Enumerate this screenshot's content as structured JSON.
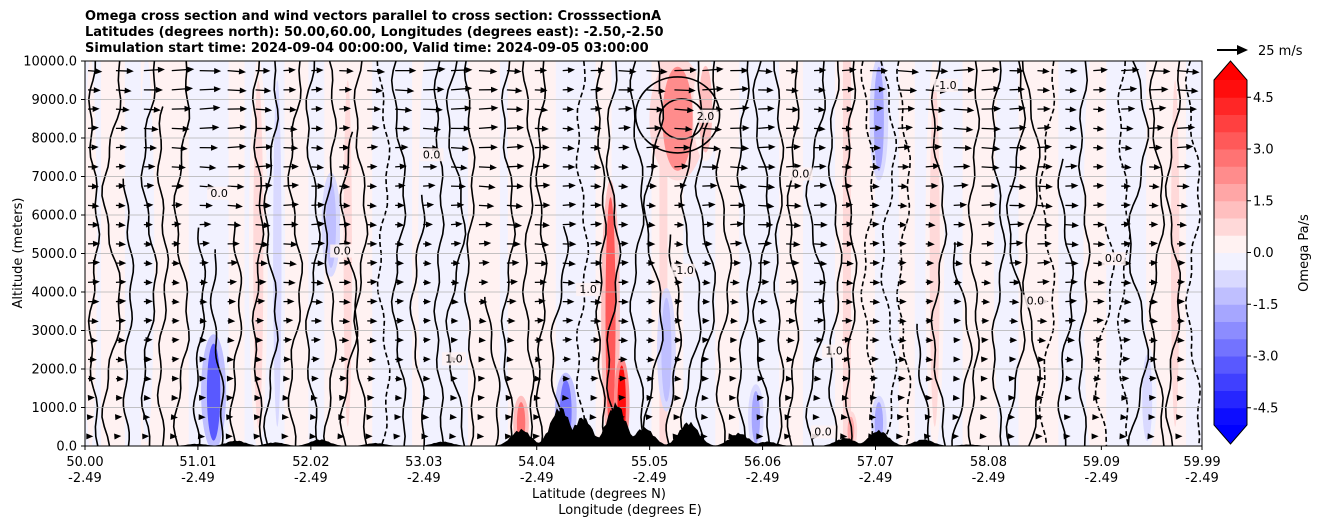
{
  "chart_data": {
    "type": "heatmap",
    "title_lines": [
      "Omega cross section and wind vectors parallel to cross section: CrosssectionA",
      "Latitudes (degrees north): 50.00,60.00, Longitudes (degrees east): -2.50,-2.50",
      "Simulation start time: 2024-09-04 00:00:00, Valid time: 2024-09-05 03:00:00"
    ],
    "xlabel_line1": "Latitude (degrees N)",
    "xlabel_line2": "Longitude (degrees E)",
    "ylabel": "Altitude (meters)",
    "x_ticks": [
      {
        "lat": "50.00",
        "lon": "-2.49"
      },
      {
        "lat": "51.01",
        "lon": "-2.49"
      },
      {
        "lat": "52.02",
        "lon": "-2.49"
      },
      {
        "lat": "53.03",
        "lon": "-2.49"
      },
      {
        "lat": "54.04",
        "lon": "-2.49"
      },
      {
        "lat": "55.05",
        "lon": "-2.49"
      },
      {
        "lat": "56.06",
        "lon": "-2.49"
      },
      {
        "lat": "57.07",
        "lon": "-2.49"
      },
      {
        "lat": "58.08",
        "lon": "-2.49"
      },
      {
        "lat": "59.09",
        "lon": "-2.49"
      },
      {
        "lat": "59.99",
        "lon": "-2.49"
      }
    ],
    "y_ticks": [
      "0.0",
      "1000.0",
      "2000.0",
      "3000.0",
      "4000.0",
      "5000.0",
      "6000.0",
      "7000.0",
      "8000.0",
      "9000.0",
      "10000.0"
    ],
    "xlim": [
      50.0,
      59.99
    ],
    "ylim": [
      0,
      10000
    ],
    "grid": "horizontal",
    "colorbar": {
      "label": "Omega Pa/s",
      "min": -5.0,
      "max": 5.0,
      "step": 0.5,
      "ticks": [
        "-4.5",
        "-3.0",
        "-1.5",
        "0.0",
        "1.5",
        "3.0",
        "4.5"
      ],
      "extend": "both",
      "colormap": "bwr"
    },
    "quiver_key": {
      "label": "25 m/s",
      "speed": 25
    },
    "features": [
      {
        "lat": 50.05,
        "alt_top": 10000,
        "alt_bottom": 0,
        "width": 0.04,
        "omega": 0.35
      },
      {
        "lat": 50.55,
        "alt_top": 10000,
        "alt_bottom": 200,
        "width": 0.05,
        "omega": -0.4
      },
      {
        "lat": 51.15,
        "alt_top": 2800,
        "alt_bottom": 0,
        "width": 0.08,
        "omega": -3.2
      },
      {
        "lat": 51.55,
        "alt_top": 10000,
        "alt_bottom": 0,
        "width": 0.06,
        "omega": 0.5
      },
      {
        "lat": 51.72,
        "alt_top": 10000,
        "alt_bottom": 0,
        "width": 0.05,
        "omega": -0.6
      },
      {
        "lat": 52.2,
        "alt_top": 7000,
        "alt_bottom": 4500,
        "width": 0.06,
        "omega": -1.4
      },
      {
        "lat": 52.35,
        "alt_top": 10000,
        "alt_bottom": 0,
        "width": 0.05,
        "omega": 0.6
      },
      {
        "lat": 53.05,
        "alt_top": 10000,
        "alt_bottom": 0,
        "width": 0.05,
        "omega": -0.5
      },
      {
        "lat": 53.9,
        "alt_top": 1200,
        "alt_bottom": 0,
        "width": 0.05,
        "omega": 2.5
      },
      {
        "lat": 54.3,
        "alt_top": 1800,
        "alt_bottom": 0,
        "width": 0.07,
        "omega": -2.6
      },
      {
        "lat": 54.7,
        "alt_top": 6800,
        "alt_bottom": 0,
        "width": 0.06,
        "omega": 3.2
      },
      {
        "lat": 54.8,
        "alt_top": 2200,
        "alt_bottom": 0,
        "width": 0.05,
        "omega": 5.0
      },
      {
        "lat": 55.2,
        "alt_top": 4000,
        "alt_bottom": 1000,
        "width": 0.06,
        "omega": -1.2
      },
      {
        "lat": 55.3,
        "alt_top": 10000,
        "alt_bottom": 7000,
        "width": 0.18,
        "omega": 2.2
      },
      {
        "lat": 55.55,
        "alt_top": 10000,
        "alt_bottom": 7500,
        "width": 0.08,
        "omega": 1.0
      },
      {
        "lat": 56.0,
        "alt_top": 1500,
        "alt_bottom": 0,
        "width": 0.05,
        "omega": -2.0
      },
      {
        "lat": 56.85,
        "alt_top": 800,
        "alt_bottom": 0,
        "width": 0.04,
        "omega": 1.6
      },
      {
        "lat": 57.1,
        "alt_top": 10000,
        "alt_bottom": 7000,
        "width": 0.06,
        "omega": -1.6
      },
      {
        "lat": 57.1,
        "alt_top": 1200,
        "alt_bottom": 0,
        "width": 0.05,
        "omega": -1.8
      },
      {
        "lat": 57.6,
        "alt_top": 10000,
        "alt_bottom": 0,
        "width": 0.06,
        "omega": 0.5
      },
      {
        "lat": 58.2,
        "alt_top": 10000,
        "alt_bottom": 0,
        "width": 0.05,
        "omega": -0.5
      },
      {
        "lat": 59.0,
        "alt_top": 10000,
        "alt_bottom": 0,
        "width": 0.05,
        "omega": 0.4
      },
      {
        "lat": 59.5,
        "alt_top": 2500,
        "alt_bottom": 0,
        "width": 0.06,
        "omega": -0.7
      },
      {
        "lat": 59.75,
        "alt_top": 10000,
        "alt_bottom": 0,
        "width": 0.05,
        "omega": 0.5
      }
    ],
    "contour_labels": [
      {
        "text": "0.0",
        "lat": 51.2,
        "alt": 6500
      },
      {
        "text": "0.0",
        "lat": 52.3,
        "alt": 5000
      },
      {
        "text": "0.0",
        "lat": 53.1,
        "alt": 7500
      },
      {
        "text": "1.0",
        "lat": 53.3,
        "alt": 2200
      },
      {
        "text": "-1.0",
        "lat": 55.35,
        "alt": 4500
      },
      {
        "text": "2.0",
        "lat": 55.55,
        "alt": 8500
      },
      {
        "text": "1.0",
        "lat": 54.5,
        "alt": 4000
      },
      {
        "text": "0.0",
        "lat": 56.4,
        "alt": 7000
      },
      {
        "text": "1.0",
        "lat": 56.7,
        "alt": 2400
      },
      {
        "text": "0.0",
        "lat": 58.5,
        "alt": 3700
      },
      {
        "text": "0.0",
        "lat": 59.2,
        "alt": 4800
      },
      {
        "text": "-1.0",
        "lat": 57.7,
        "alt": 9300
      },
      {
        "text": "0.0",
        "lat": 56.6,
        "alt": 300
      }
    ]
  }
}
